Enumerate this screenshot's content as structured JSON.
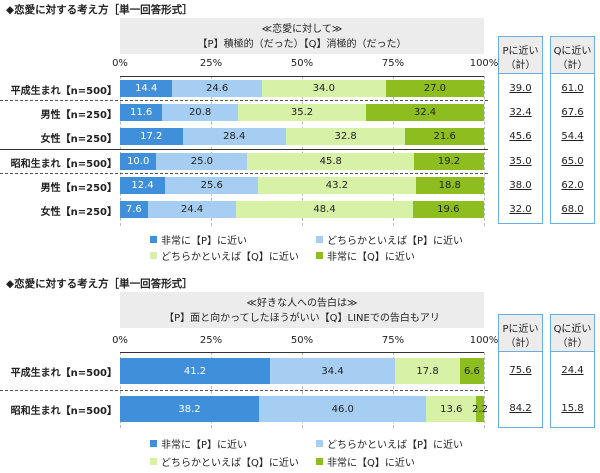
{
  "chart_data": [
    {
      "type": "bar",
      "title": "◆恋愛に対する考え方［単一回答形式］",
      "question_line1": "≪恋愛に対して≫",
      "question_line2": "【P】積極的（だった）【Q】消極的（だった）",
      "xticks": [
        "0%",
        "25%",
        "50%",
        "75%",
        "100%"
      ],
      "xlim": [
        0,
        100
      ],
      "categories": [
        "平成生まれ【n=500】",
        "男性【n=250】",
        "女性【n=250】",
        "昭和生まれ【n=500】",
        "男性【n=250】",
        "女性【n=250】"
      ],
      "series": [
        {
          "name": "非常に【P】に近い",
          "values": [
            14.4,
            11.6,
            17.2,
            10.0,
            12.4,
            7.6
          ]
        },
        {
          "name": "どちらかといえば【P】に近い",
          "values": [
            24.6,
            20.8,
            28.4,
            25.0,
            25.6,
            24.4
          ]
        },
        {
          "name": "どちらかといえば【Q】に近い",
          "values": [
            34.0,
            35.2,
            32.8,
            45.8,
            43.2,
            48.4
          ]
        },
        {
          "name": "非常に【Q】に近い",
          "values": [
            27.0,
            32.4,
            21.6,
            19.2,
            18.8,
            19.6
          ]
        }
      ],
      "summary_headers": [
        "Pに近い（計）",
        "Qに近い（計）"
      ],
      "summary_p": [
        "39.0",
        "32.4",
        "45.6",
        "35.0",
        "38.0",
        "32.0"
      ],
      "summary_q": [
        "61.0",
        "67.6",
        "54.4",
        "65.0",
        "62.0",
        "68.0"
      ],
      "legend_position": "bottom"
    },
    {
      "type": "bar",
      "title": "◆恋愛に対する考え方［単一回答形式］",
      "question_line1": "≪好きな人への告白は≫",
      "question_line2": "【P】面と向かってしたほうがいい【Q】LINEでの告白もアリ",
      "xticks": [
        "0%",
        "25%",
        "50%",
        "75%",
        "100%"
      ],
      "xlim": [
        0,
        100
      ],
      "categories": [
        "平成生まれ【n=500】",
        "昭和生まれ【n=500】"
      ],
      "series": [
        {
          "name": "非常に【P】に近い",
          "values": [
            41.2,
            38.2
          ]
        },
        {
          "name": "どちらかといえば【P】に近い",
          "values": [
            34.4,
            46.0
          ]
        },
        {
          "name": "どちらかといえば【Q】に近い",
          "values": [
            17.8,
            13.6
          ]
        },
        {
          "name": "非常に【Q】に近い",
          "values": [
            6.6,
            2.2
          ]
        }
      ],
      "summary_headers": [
        "Pに近い（計）",
        "Qに近い（計）"
      ],
      "summary_p": [
        "75.6",
        "84.2"
      ],
      "summary_q": [
        "24.4",
        "15.8"
      ],
      "legend_position": "bottom"
    }
  ],
  "colors": [
    "#3f8fdb",
    "#a6cdf2",
    "#d7f1a6",
    "#8dbd1e"
  ]
}
